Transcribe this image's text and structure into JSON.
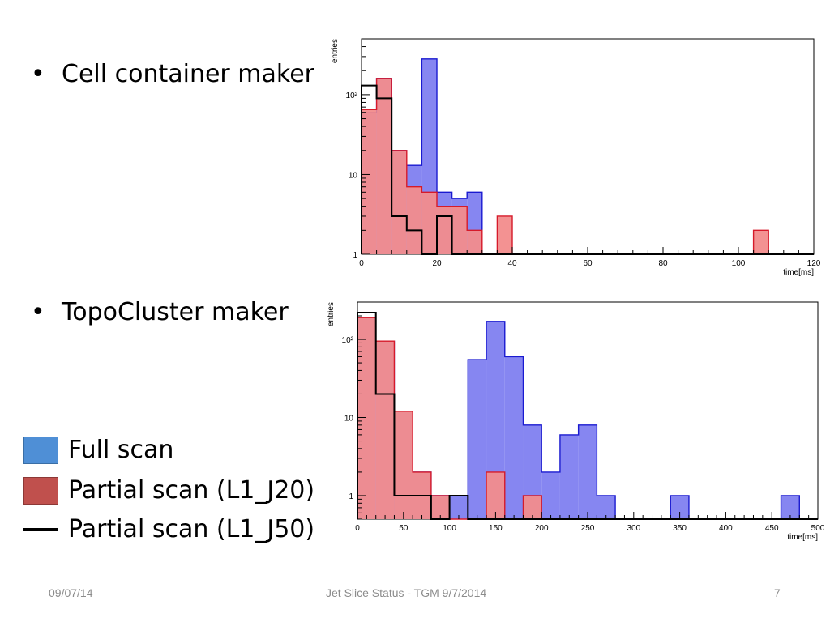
{
  "bullets": [
    {
      "symbol": "•",
      "text": "Cell container maker"
    },
    {
      "symbol": "•",
      "text": "TopoCluster maker"
    }
  ],
  "legend": [
    {
      "label": "Full scan",
      "color": "#4f8fd6"
    },
    {
      "label": "Partial scan (L1_J20)",
      "color": "#c0504d"
    },
    {
      "label": "Partial scan (L1_J50)",
      "color": "#000000"
    }
  ],
  "footer": {
    "date": "09/07/14",
    "title": "Jet Slice Status - TGM 9/7/2014",
    "page": "7"
  },
  "colors": {
    "full_fill": "#7f7ff0",
    "full_stroke": "#1a1ad0",
    "partial_fill": "#f28c8c",
    "partial_stroke": "#d61a2a",
    "j50_stroke": "#000000"
  },
  "chart_data": [
    {
      "type": "histogram",
      "ylabel": "entries",
      "xlabel": "time[ms]",
      "log_y": true,
      "xlim": [
        0,
        120
      ],
      "ylim": [
        1,
        500
      ],
      "x_ticks": [
        0,
        20,
        40,
        60,
        80,
        100,
        120
      ],
      "y_ticks": [
        {
          "value": 1,
          "label": "1"
        },
        {
          "value": 10,
          "label": "10"
        },
        {
          "value": 100,
          "label": "10²"
        }
      ],
      "bin_width": 4,
      "series": [
        {
          "id": "full",
          "values": [
            60,
            160,
            20,
            13,
            280,
            6,
            5,
            6,
            0,
            0,
            0,
            0,
            0,
            0,
            0,
            0,
            0,
            0,
            0,
            0,
            0,
            0,
            0,
            0,
            0,
            0,
            0,
            0,
            0,
            0
          ]
        },
        {
          "id": "partial_j20",
          "values": [
            65,
            160,
            20,
            7,
            6,
            4,
            4,
            2,
            0,
            3,
            0,
            0,
            0,
            0,
            0,
            0,
            0,
            0,
            0,
            0,
            0,
            0,
            0,
            0,
            0,
            0,
            2,
            0,
            0,
            0
          ]
        },
        {
          "id": "partial_j50",
          "values": [
            130,
            90,
            3,
            2,
            0,
            3,
            0,
            0,
            0,
            0,
            0,
            0,
            0,
            0,
            0,
            0,
            0,
            0,
            0,
            0,
            0,
            0,
            0,
            0,
            0,
            0,
            0,
            0,
            0,
            0
          ]
        }
      ]
    },
    {
      "type": "histogram",
      "ylabel": "entries",
      "xlabel": "time[ms]",
      "log_y": true,
      "xlim": [
        0,
        500
      ],
      "ylim": [
        0.5,
        300
      ],
      "x_ticks": [
        0,
        50,
        100,
        150,
        200,
        250,
        300,
        350,
        400,
        450,
        500
      ],
      "y_ticks": [
        {
          "value": 1,
          "label": "1"
        },
        {
          "value": 10,
          "label": "10"
        },
        {
          "value": 100,
          "label": "10²"
        }
      ],
      "bin_width": 20,
      "series": [
        {
          "id": "full",
          "values": [
            190,
            95,
            12,
            2,
            1,
            1,
            55,
            170,
            60,
            8,
            2,
            6,
            8,
            1,
            0,
            0,
            0,
            1,
            0,
            0,
            0,
            0,
            0,
            1,
            0
          ]
        },
        {
          "id": "partial_j20",
          "values": [
            190,
            95,
            12,
            2,
            1,
            0,
            0,
            2,
            0,
            1,
            0,
            0,
            0,
            0,
            0,
            0,
            0,
            0,
            0,
            0,
            0,
            0,
            0,
            0,
            0
          ]
        },
        {
          "id": "partial_j50",
          "values": [
            220,
            20,
            1,
            1,
            0,
            1,
            0,
            0,
            0,
            0,
            0,
            0,
            0,
            0,
            0,
            0,
            0,
            0,
            0,
            0,
            0,
            0,
            0,
            0,
            0
          ]
        }
      ]
    }
  ]
}
